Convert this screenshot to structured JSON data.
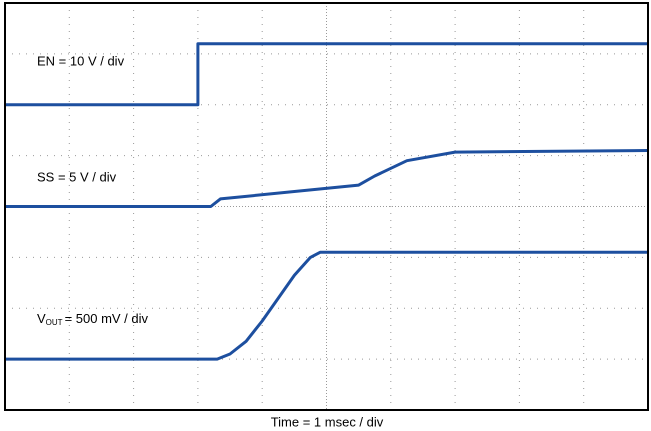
{
  "chart_data": {
    "type": "line",
    "x_label": "Time = 1 msec / div",
    "annotations": [
      "EN = 10 V / div",
      "SS = 5 V / div",
      [
        "V",
        "OUT",
        "= 500 mV / div"
      ]
    ],
    "xlim": [
      0,
      10
    ],
    "ylim": [
      0,
      8
    ],
    "xticks": [
      0,
      1,
      2,
      3,
      4,
      5,
      6,
      7,
      8,
      9,
      10
    ],
    "yticks": [
      0,
      1,
      2,
      3,
      4,
      5,
      6,
      7,
      8
    ],
    "grid": true,
    "series": [
      {
        "name": "EN",
        "color": "#1d4f9f",
        "x": [
          0,
          3.0,
          3.0,
          10
        ],
        "values": [
          6.0,
          6.0,
          7.2,
          7.2
        ]
      },
      {
        "name": "SS",
        "color": "#1d4f9f",
        "x": [
          0,
          3.2,
          3.35,
          5.5,
          5.75,
          6.25,
          7.0,
          10
        ],
        "values": [
          4.0,
          4.0,
          4.15,
          4.42,
          4.6,
          4.9,
          5.07,
          5.1
        ]
      },
      {
        "name": "VOUT",
        "color": "#1d4f9f",
        "x": [
          0,
          3.3,
          3.5,
          3.75,
          4.0,
          4.25,
          4.5,
          4.75,
          4.9,
          10
        ],
        "values": [
          1.0,
          1.0,
          1.1,
          1.35,
          1.75,
          2.2,
          2.65,
          3.0,
          3.1,
          3.1
        ]
      }
    ]
  }
}
